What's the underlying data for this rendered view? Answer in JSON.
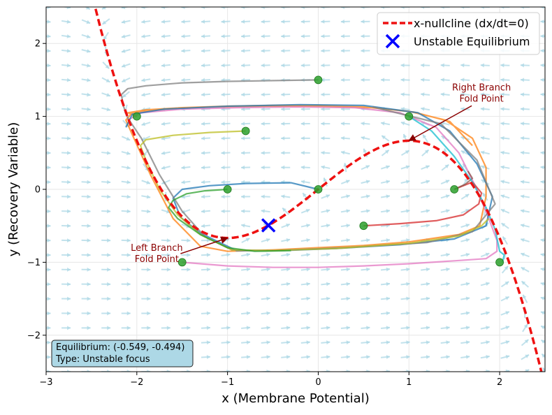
{
  "chart_data": {
    "type": "line",
    "xlabel": "x (Membrane Potential)",
    "ylabel": "y (Recovery Variable)",
    "xlim": [
      -3,
      2.5
    ],
    "ylim": [
      -2.5,
      2.5
    ],
    "x_ticks": [
      -3,
      -2,
      -1,
      0,
      1,
      2
    ],
    "y_ticks": [
      -2,
      -1,
      0,
      1,
      2
    ],
    "x_tick_labels": [
      "−3",
      "−2",
      "−1",
      "0",
      "1",
      "2"
    ],
    "y_tick_labels": [
      "−2",
      "−1",
      "0",
      "1",
      "2"
    ],
    "grid": true,
    "legend_position": "top-right",
    "legend": [
      {
        "label": "x-nullcline (dx/dt=0)",
        "color": "#ee1111",
        "style": "dashed line"
      },
      {
        "label": "Unstable Equilibrium",
        "color": "#0000ff",
        "style": "x marker"
      }
    ],
    "nullcline": {
      "equation": "y = x - x^3/3",
      "color": "#ee1111"
    },
    "equilibrium": {
      "x": -0.549,
      "y": -0.494,
      "color": "#0000ff"
    },
    "initial_points": [
      [
        -2,
        1
      ],
      [
        -1.5,
        -1
      ],
      [
        -1,
        0
      ],
      [
        -0.8,
        0.8
      ],
      [
        0,
        0
      ],
      [
        0,
        1.5
      ],
      [
        0.5,
        -0.5
      ],
      [
        1,
        1
      ],
      [
        1.5,
        0
      ],
      [
        2,
        -1
      ]
    ],
    "initial_point_color": "#2ca02c",
    "trajectories": [
      {
        "color": "#ff7f0e",
        "points": [
          [
            -2,
            1
          ],
          [
            -2.1,
            1.05
          ],
          [
            -1.9,
            1.09
          ],
          [
            -1.5,
            1.12
          ],
          [
            -1,
            1.14
          ],
          [
            -0.5,
            1.15
          ],
          [
            0,
            1.15
          ],
          [
            0.5,
            1.13
          ],
          [
            1,
            1.07
          ],
          [
            1.4,
            0.95
          ],
          [
            1.7,
            0.7
          ],
          [
            1.85,
            0.3
          ],
          [
            1.85,
            -0.1
          ],
          [
            1.78,
            -0.5
          ],
          [
            1.55,
            -0.62
          ],
          [
            1,
            -0.72
          ],
          [
            0.5,
            -0.77
          ],
          [
            0,
            -0.8
          ],
          [
            -0.5,
            -0.83
          ],
          [
            -1,
            -0.85
          ],
          [
            -1.3,
            -0.78
          ],
          [
            -1.6,
            -0.4
          ],
          [
            -1.85,
            0.2
          ],
          [
            -2.05,
            0.75
          ],
          [
            -2.12,
            0.95
          ],
          [
            -2.05,
            1.05
          ],
          [
            -1.7,
            1.1
          ],
          [
            -1.2,
            1.13
          ],
          [
            -0.6,
            1.14
          ],
          [
            0,
            1.14
          ],
          [
            0.6,
            1.12
          ],
          [
            1.05,
            1.06
          ],
          [
            1.45,
            0.93
          ],
          [
            1.7,
            0.6
          ]
        ]
      },
      {
        "color": "#e377c2",
        "points": [
          [
            -1.5,
            -1
          ],
          [
            -1,
            -1.05
          ],
          [
            -0.5,
            -1.07
          ],
          [
            0,
            -1.07
          ],
          [
            0.5,
            -1.05
          ],
          [
            1,
            -1.02
          ],
          [
            1.5,
            -0.98
          ],
          [
            1.85,
            -0.95
          ],
          [
            1.97,
            -0.85
          ],
          [
            1.97,
            -0.7
          ],
          [
            1.88,
            -0.4
          ],
          [
            1.75,
            0
          ],
          [
            1.55,
            0.5
          ],
          [
            1.3,
            0.85
          ],
          [
            0.9,
            1.05
          ],
          [
            0.4,
            1.12
          ],
          [
            -0.2,
            1.13
          ],
          [
            -0.9,
            1.12
          ],
          [
            -1.5,
            1.1
          ],
          [
            -1.95,
            1.05
          ],
          [
            -2.1,
            0.95
          ]
        ]
      },
      {
        "color": "#1f77b4",
        "points": [
          [
            0,
            0
          ],
          [
            -0.3,
            0.09
          ],
          [
            -0.8,
            0.08
          ],
          [
            -1.2,
            0.05
          ],
          [
            -1.5,
            0
          ],
          [
            -1.6,
            -0.12
          ],
          [
            -1.52,
            -0.38
          ],
          [
            -1.3,
            -0.6
          ],
          [
            -0.9,
            -0.84
          ],
          [
            -0.4,
            -0.84
          ],
          [
            0.2,
            -0.81
          ],
          [
            0.9,
            -0.76
          ],
          [
            1.5,
            -0.68
          ],
          [
            1.85,
            -0.5
          ],
          [
            1.92,
            -0.1
          ],
          [
            1.75,
            0.35
          ],
          [
            1.45,
            0.8
          ],
          [
            1.1,
            1.05
          ],
          [
            0.5,
            1.15
          ],
          [
            -0.2,
            1.16
          ],
          [
            -1,
            1.14
          ],
          [
            -1.7,
            1.1
          ],
          [
            -2.05,
            1.03
          ],
          [
            -2.12,
            0.85
          ]
        ]
      },
      {
        "color": "#7f7f7f",
        "points": [
          [
            0,
            1.5
          ],
          [
            -0.5,
            1.49
          ],
          [
            -1,
            1.48
          ],
          [
            -1.5,
            1.46
          ],
          [
            -1.9,
            1.42
          ],
          [
            -2.1,
            1.38
          ],
          [
            -2.17,
            1.3
          ],
          [
            -2.15,
            1.15
          ],
          [
            -2.1,
            0.98
          ],
          [
            -1.95,
            0.7
          ],
          [
            -1.75,
            0.2
          ],
          [
            -1.5,
            -0.3
          ],
          [
            -1.25,
            -0.65
          ],
          [
            -0.95,
            -0.83
          ],
          [
            -0.5,
            -0.84
          ],
          [
            0.3,
            -0.8
          ],
          [
            1.2,
            -0.73
          ],
          [
            1.7,
            -0.58
          ],
          [
            1.95,
            -0.2
          ],
          [
            1.75,
            0.4
          ],
          [
            1.35,
            0.9
          ],
          [
            0.6,
            1.13
          ]
        ]
      },
      {
        "color": "#bcbd22",
        "points": [
          [
            -0.8,
            0.8
          ],
          [
            -1.2,
            0.78
          ],
          [
            -1.6,
            0.74
          ],
          [
            -1.9,
            0.68
          ],
          [
            -1.96,
            0.6
          ],
          [
            -1.9,
            0.4
          ],
          [
            -1.75,
            0
          ],
          [
            -1.55,
            -0.35
          ],
          [
            -1.3,
            -0.62
          ],
          [
            -0.95,
            -0.83
          ],
          [
            -0.5,
            -0.84
          ],
          [
            0.2,
            -0.81
          ],
          [
            1,
            -0.74
          ],
          [
            1.55,
            -0.64
          ],
          [
            1.8,
            -0.5
          ],
          [
            1.88,
            -0.4
          ]
        ]
      },
      {
        "color": "#2ca02c",
        "points": [
          [
            -1,
            0
          ],
          [
            -1.25,
            -0.02
          ],
          [
            -1.45,
            -0.06
          ],
          [
            -1.6,
            -0.15
          ],
          [
            -1.65,
            -0.25
          ],
          [
            -1.55,
            -0.4
          ],
          [
            -1.3,
            -0.62
          ],
          [
            -1,
            -0.8
          ],
          [
            -0.7,
            -0.85
          ],
          [
            -0.3,
            -0.84
          ]
        ]
      },
      {
        "color": "#d62728",
        "points": [
          [
            0.5,
            -0.5
          ],
          [
            0.9,
            -0.47
          ],
          [
            1.3,
            -0.43
          ],
          [
            1.6,
            -0.35
          ],
          [
            1.77,
            -0.2
          ],
          [
            1.8,
            -0.05
          ],
          [
            1.7,
            0.1
          ],
          [
            1.5,
            0
          ]
        ]
      },
      {
        "color": "#8c564b",
        "points": [
          [
            1.5,
            0
          ],
          [
            1.62,
            0.07
          ],
          [
            1.7,
            0.15
          ],
          [
            1.65,
            0.25
          ]
        ]
      },
      {
        "color": "#17becf",
        "points": [
          [
            1,
            1
          ],
          [
            1.25,
            0.8
          ],
          [
            1.5,
            0.45
          ],
          [
            1.7,
            0.1
          ],
          [
            1.85,
            -0.25
          ],
          [
            1.95,
            -0.55
          ],
          [
            2,
            -0.85
          ],
          [
            2.05,
            -0.9
          ],
          [
            2.03,
            -1
          ]
        ]
      }
    ],
    "annotations": [
      {
        "text_lines": [
          "Right Branch",
          "Fold Point"
        ],
        "text_x": 1.8,
        "text_y": 1.28,
        "target": [
          1,
          0.667
        ],
        "color": "#8b0000"
      },
      {
        "text_lines": [
          "Left Branch",
          "Fold Point"
        ],
        "text_x": -1.78,
        "text_y": -0.92,
        "target": [
          -1,
          -0.667
        ],
        "color": "#8b0000"
      }
    ],
    "info_box": [
      "Equilibrium: (-0.549, -0.494)",
      "Type: Unstable focus"
    ],
    "vector_field_color": "#add8e6"
  }
}
